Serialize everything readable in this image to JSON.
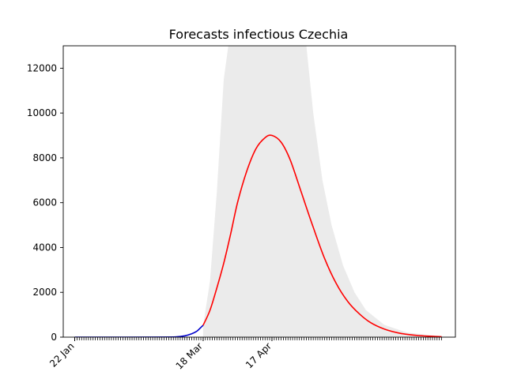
{
  "chart_data": {
    "type": "line",
    "title": "Forecasts infectious Czechia",
    "xlabel": "",
    "ylabel": "",
    "x_tick_labels": [
      "22 Jan",
      "18 Mar",
      "17 Apr"
    ],
    "x_tick_dates": [
      "2020-01-22",
      "2020-03-18",
      "2020-04-17"
    ],
    "x_range": [
      "2020-01-17",
      "2020-07-06"
    ],
    "ylim": [
      0,
      13000
    ],
    "y_ticks": [
      0,
      2000,
      4000,
      6000,
      8000,
      10000,
      12000
    ],
    "grid": false,
    "legend": "none",
    "series": [
      {
        "color": "#0000cc",
        "points": [
          {
            "date": "2020-01-22",
            "value": 0
          },
          {
            "date": "2020-02-15",
            "value": 0
          },
          {
            "date": "2020-03-01",
            "value": 3
          },
          {
            "date": "2020-03-06",
            "value": 12
          },
          {
            "date": "2020-03-10",
            "value": 60
          },
          {
            "date": "2020-03-13",
            "value": 150
          },
          {
            "date": "2020-03-15",
            "value": 250
          },
          {
            "date": "2020-03-16",
            "value": 330
          },
          {
            "date": "2020-03-17",
            "value": 430
          },
          {
            "date": "2020-03-18",
            "value": 530
          }
        ]
      },
      {
        "color": "#ff0000",
        "points": [
          {
            "date": "2020-03-18",
            "value": 530
          },
          {
            "date": "2020-03-21",
            "value": 1200
          },
          {
            "date": "2020-03-24",
            "value": 2200
          },
          {
            "date": "2020-03-27",
            "value": 3300
          },
          {
            "date": "2020-03-30",
            "value": 4600
          },
          {
            "date": "2020-04-02",
            "value": 6000
          },
          {
            "date": "2020-04-06",
            "value": 7400
          },
          {
            "date": "2020-04-10",
            "value": 8400
          },
          {
            "date": "2020-04-14",
            "value": 8900
          },
          {
            "date": "2020-04-17",
            "value": 9000
          },
          {
            "date": "2020-04-21",
            "value": 8700
          },
          {
            "date": "2020-04-25",
            "value": 7900
          },
          {
            "date": "2020-04-30",
            "value": 6400
          },
          {
            "date": "2020-05-05",
            "value": 4900
          },
          {
            "date": "2020-05-10",
            "value": 3500
          },
          {
            "date": "2020-05-15",
            "value": 2400
          },
          {
            "date": "2020-05-20",
            "value": 1600
          },
          {
            "date": "2020-05-25",
            "value": 1050
          },
          {
            "date": "2020-05-30",
            "value": 650
          },
          {
            "date": "2020-06-05",
            "value": 360
          },
          {
            "date": "2020-06-12",
            "value": 170
          },
          {
            "date": "2020-06-20",
            "value": 70
          },
          {
            "date": "2020-06-30",
            "value": 20
          }
        ]
      }
    ],
    "band": {
      "color": "#ebebeb",
      "points": [
        {
          "date": "2020-03-18",
          "lower": 0,
          "upper": 500
        },
        {
          "date": "2020-03-21",
          "lower": 0,
          "upper": 2500
        },
        {
          "date": "2020-03-24",
          "lower": 0,
          "upper": 6500
        },
        {
          "date": "2020-03-27",
          "lower": 0,
          "upper": 11500
        },
        {
          "date": "2020-03-29",
          "lower": 0,
          "upper": 13000
        },
        {
          "date": "2020-05-02",
          "lower": 0,
          "upper": 13000
        },
        {
          "date": "2020-05-05",
          "lower": 0,
          "upper": 10000
        },
        {
          "date": "2020-05-09",
          "lower": 0,
          "upper": 7000
        },
        {
          "date": "2020-05-13",
          "lower": 0,
          "upper": 5000
        },
        {
          "date": "2020-05-18",
          "lower": 0,
          "upper": 3200
        },
        {
          "date": "2020-05-23",
          "lower": 0,
          "upper": 2000
        },
        {
          "date": "2020-05-28",
          "lower": 0,
          "upper": 1200
        },
        {
          "date": "2020-06-05",
          "lower": 0,
          "upper": 550
        },
        {
          "date": "2020-06-15",
          "lower": 0,
          "upper": 200
        },
        {
          "date": "2020-06-30",
          "lower": 0,
          "upper": 40
        }
      ]
    }
  }
}
